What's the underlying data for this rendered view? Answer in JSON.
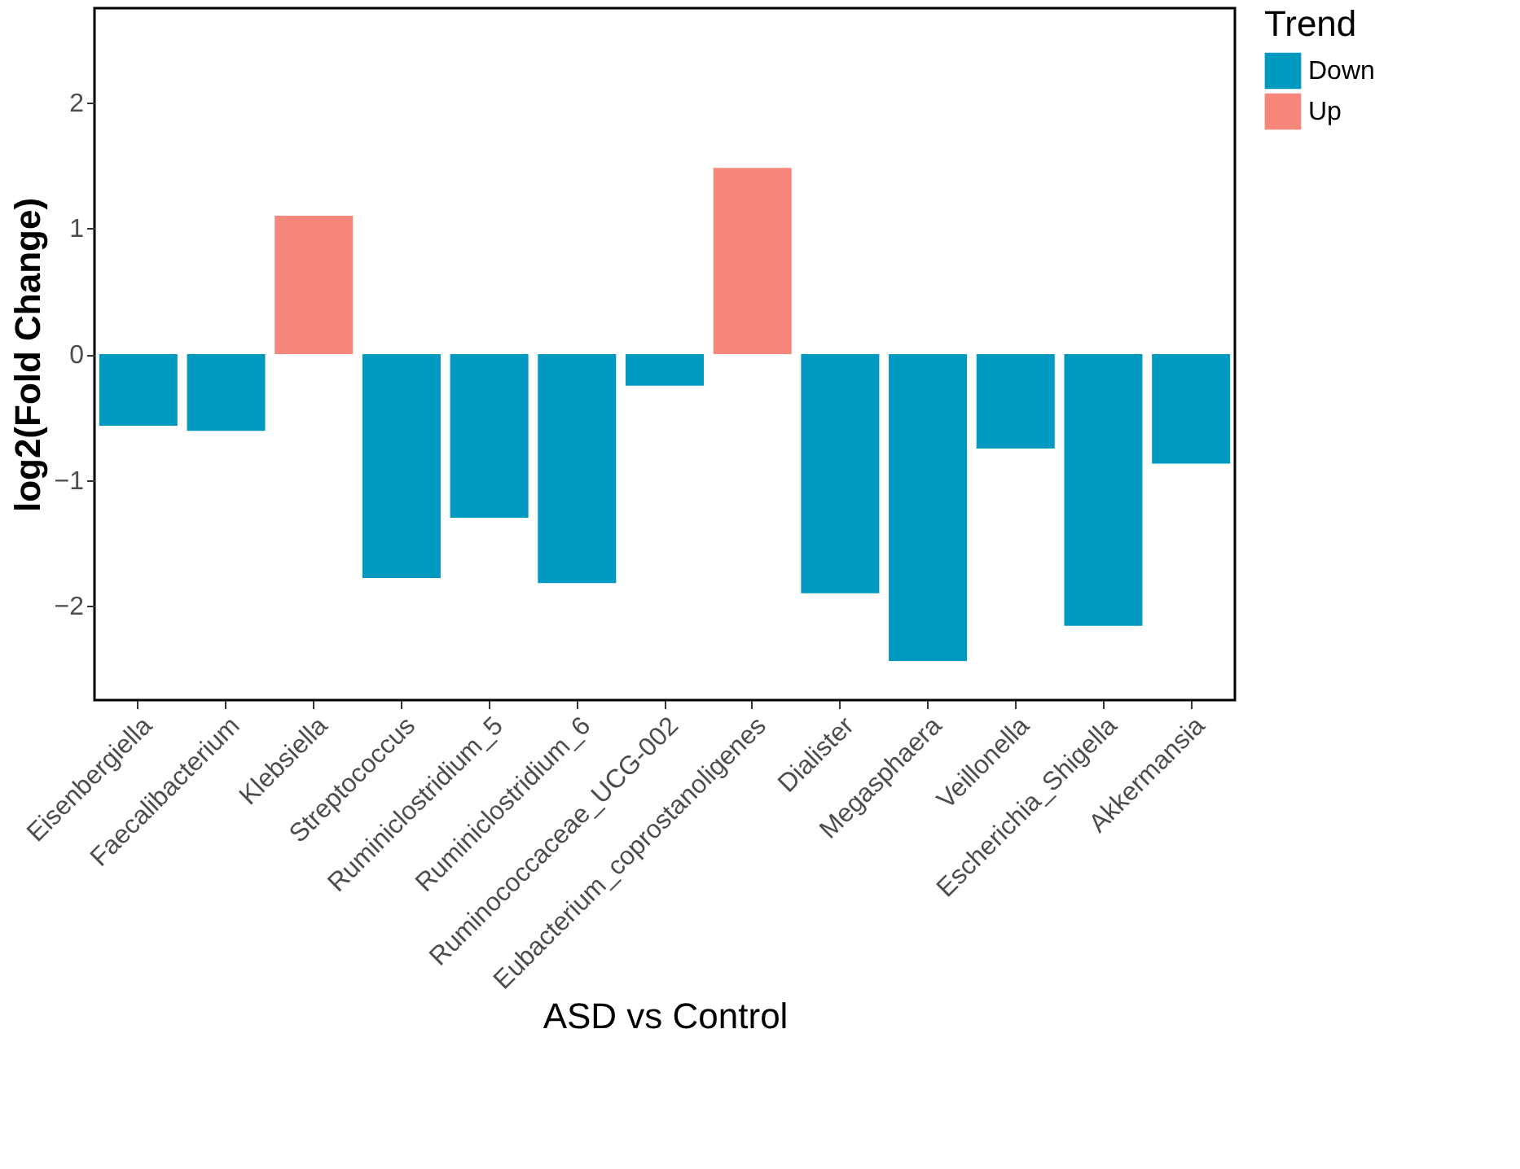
{
  "chart_data": {
    "type": "bar",
    "xlabel": "ASD vs Control",
    "ylabel": "log2(Fold Change)",
    "legend_title": "Trend",
    "categories": [
      "Eisenbergiella",
      "Faecalibacterium",
      "Klebsiella",
      "Streptococcus",
      "Ruminiclostridium_5",
      "Ruminiclostridium_6",
      "Ruminococcaceae_UCG-002",
      "Eubacterium_coprostanoligenes",
      "Dialister",
      "Megasphaera",
      "Veillonella",
      "Escherichia_Shigella",
      "Akkermansia"
    ],
    "series": [
      {
        "name": "Down",
        "color": "#0099bf",
        "values": [
          -0.57,
          -0.61,
          null,
          -1.78,
          -1.3,
          -1.82,
          -0.25,
          null,
          -1.9,
          -2.44,
          -0.75,
          -2.16,
          -0.87
        ]
      },
      {
        "name": "Up",
        "color": "#f8877b",
        "values": [
          null,
          null,
          1.1,
          null,
          null,
          null,
          null,
          1.48,
          null,
          null,
          null,
          null,
          null
        ]
      }
    ],
    "ylim": [
      -2.75,
      2.75
    ],
    "yticks": [
      -2,
      -1,
      0,
      1,
      2
    ],
    "grid": false,
    "legend": "right"
  }
}
